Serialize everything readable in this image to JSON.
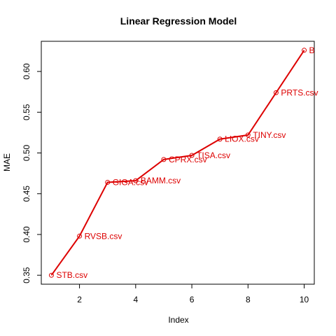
{
  "chart_data": {
    "type": "line",
    "title": "Linear Regression Model",
    "xlabel": "Index",
    "ylabel": "MAE",
    "x": [
      1,
      2,
      3,
      4,
      5,
      6,
      7,
      8,
      9,
      10
    ],
    "values": [
      0.35,
      0.398,
      0.464,
      0.466,
      0.492,
      0.497,
      0.517,
      0.522,
      0.574,
      0.626
    ],
    "point_labels": [
      "STB.csv",
      "RVSB.csv",
      "GIGA.csv",
      "BAMM.csv",
      "CPRX.csv",
      "TISA.csv",
      "LIOX.csv",
      "TINY.csv",
      "PRTS.csv",
      "B"
    ],
    "xlim": [
      0.64,
      10.36
    ],
    "ylim": [
      0.339,
      0.637
    ],
    "xticks": [
      2,
      4,
      6,
      8,
      10
    ],
    "yticks": [
      0.35,
      0.4,
      0.45,
      0.5,
      0.55,
      0.6
    ],
    "ytick_labels": [
      "0.35",
      "0.40",
      "0.45",
      "0.50",
      "0.55",
      "0.60"
    ],
    "grid": false,
    "colors": {
      "line": "#dd0000",
      "points": "#dd0000",
      "labels": "#dd0000",
      "axes": "#000000"
    }
  }
}
